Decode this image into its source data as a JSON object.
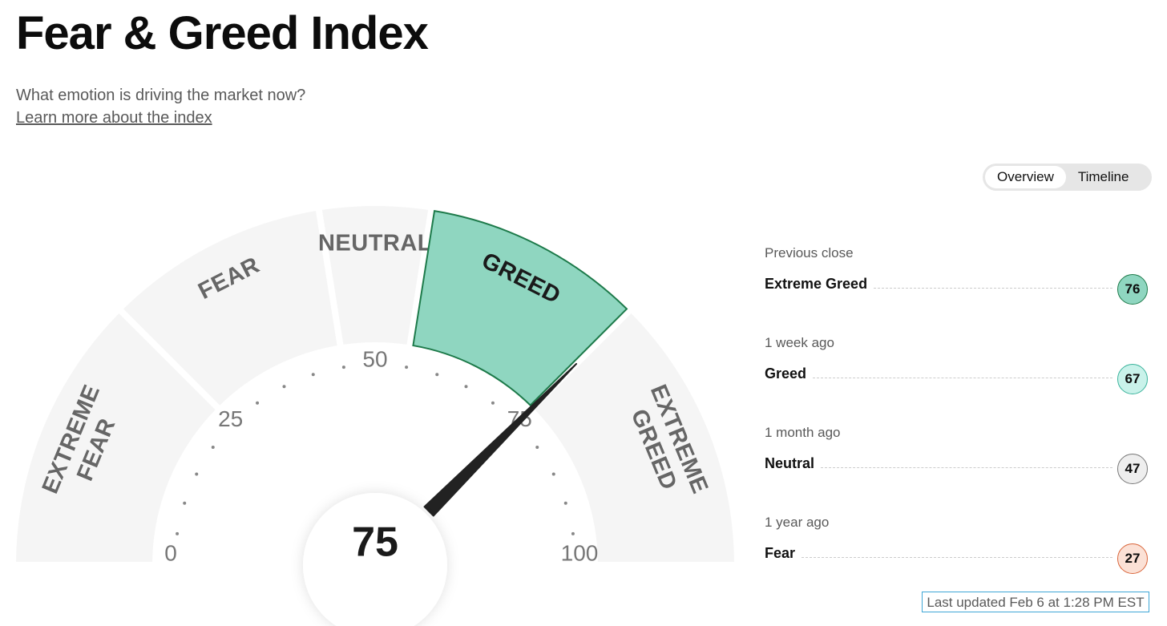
{
  "header": {
    "title": "Fear & Greed Index",
    "subtitle": "What emotion is driving the market now?",
    "link": "Learn more about the index"
  },
  "tabs": [
    {
      "label": "Overview",
      "active": true
    },
    {
      "label": "Timeline",
      "active": false
    }
  ],
  "gauge": {
    "value": 75,
    "range": [
      0,
      100
    ],
    "ticks": [
      0,
      25,
      50,
      75,
      100
    ],
    "minor_ticks": [
      5,
      10,
      15,
      20,
      30,
      35,
      40,
      45,
      55,
      60,
      65,
      70,
      80,
      85,
      90,
      95
    ],
    "segments": [
      {
        "label": [
          "EXTREME",
          "FEAR"
        ],
        "range": [
          0,
          25
        ]
      },
      {
        "label": [
          "FEAR"
        ],
        "range": [
          25,
          45
        ]
      },
      {
        "label": [
          "NEUTRAL"
        ],
        "range": [
          45,
          55
        ]
      },
      {
        "label": [
          "GREED"
        ],
        "range": [
          55,
          75
        ]
      },
      {
        "label": [
          "EXTREME",
          "GREED"
        ],
        "range": [
          75,
          100
        ]
      }
    ]
  },
  "history": [
    {
      "label": "Previous close",
      "rating": "Extreme Greed",
      "value": 76,
      "color": "#8fd6c0",
      "border_color": "#1d7a4a"
    },
    {
      "label": "1 week ago",
      "rating": "Greed",
      "value": 67,
      "color": "#c9f2ea",
      "border_color": "#3bb39c"
    },
    {
      "label": "1 month ago",
      "rating": "Neutral",
      "value": 47,
      "color": "#eeeeee",
      "border_color": "#777777"
    },
    {
      "label": "1 year ago",
      "rating": "Fear",
      "value": 27,
      "color": "#fbe1d6",
      "border_color": "#d9653a"
    }
  ],
  "footer": {
    "updated": "Last updated Feb 6 at 1:28 PM EST"
  }
}
